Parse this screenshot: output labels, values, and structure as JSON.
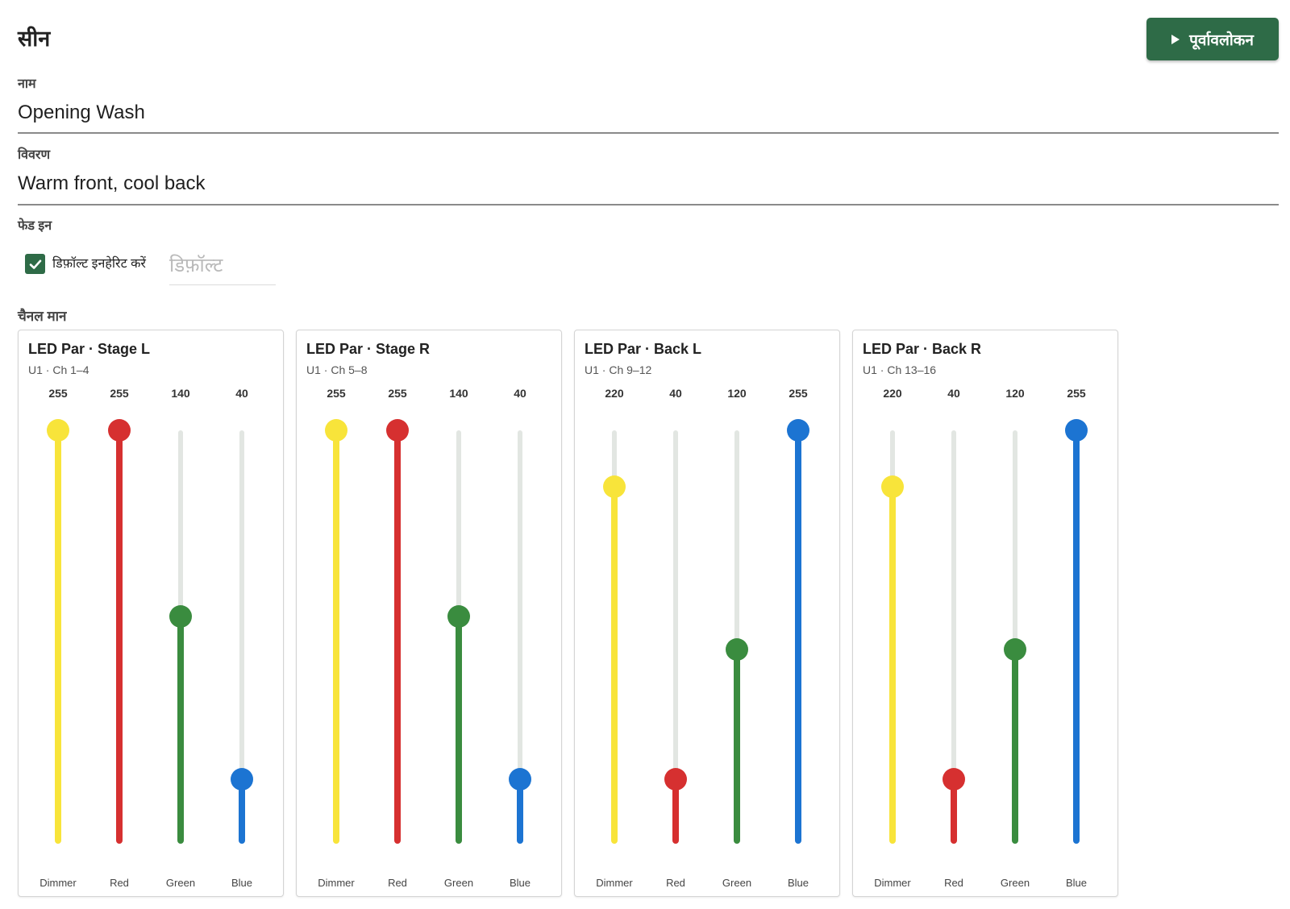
{
  "header": {
    "title": "सीन",
    "preview_label": "पूर्वावलोकन"
  },
  "fields": {
    "name_label": "नाम",
    "name_value": "Opening Wash",
    "description_label": "विवरण",
    "description_value": "Warm front, cool back",
    "fade_label": "फेड इन",
    "inherit_label": "डिफ़ॉल्ट इनहेरिट करें",
    "inherit_checked": true,
    "fade_placeholder": "डिफ़ॉल्ट"
  },
  "channels_label": "चैनल मान",
  "colors": {
    "Dimmer": "#f8e43a",
    "Red": "#d63030",
    "Green": "#3a8c3f",
    "Blue": "#1c74d2",
    "accent": "#2e6b47"
  },
  "fixtures": [
    {
      "title": "LED Par · Stage L",
      "subtitle": "U1 · Ch 1–4",
      "channels": [
        {
          "label": "Dimmer",
          "value": 255
        },
        {
          "label": "Red",
          "value": 255
        },
        {
          "label": "Green",
          "value": 140
        },
        {
          "label": "Blue",
          "value": 40
        }
      ]
    },
    {
      "title": "LED Par · Stage R",
      "subtitle": "U1 · Ch 5–8",
      "channels": [
        {
          "label": "Dimmer",
          "value": 255
        },
        {
          "label": "Red",
          "value": 255
        },
        {
          "label": "Green",
          "value": 140
        },
        {
          "label": "Blue",
          "value": 40
        }
      ]
    },
    {
      "title": "LED Par · Back L",
      "subtitle": "U1 · Ch 9–12",
      "channels": [
        {
          "label": "Dimmer",
          "value": 220
        },
        {
          "label": "Red",
          "value": 40
        },
        {
          "label": "Green",
          "value": 120
        },
        {
          "label": "Blue",
          "value": 255
        }
      ]
    },
    {
      "title": "LED Par · Back R",
      "subtitle": "U1 · Ch 13–16",
      "channels": [
        {
          "label": "Dimmer",
          "value": 220
        },
        {
          "label": "Red",
          "value": 40
        },
        {
          "label": "Green",
          "value": 120
        },
        {
          "label": "Blue",
          "value": 255
        }
      ]
    }
  ]
}
